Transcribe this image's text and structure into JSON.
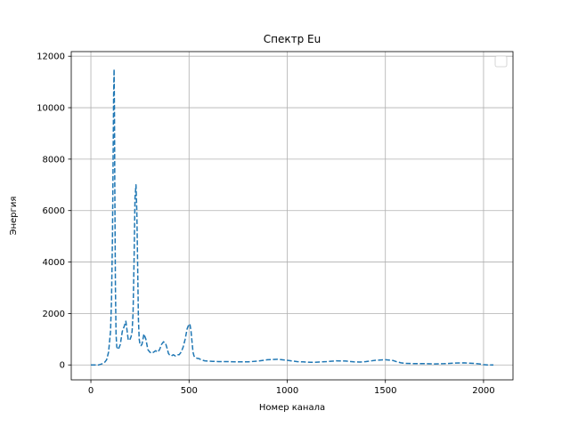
{
  "chart_data": {
    "type": "line",
    "title": "Спектр Eu",
    "xlabel": "Номер канала",
    "ylabel": "Энергия",
    "xlim": [
      -100,
      2150
    ],
    "ylim": [
      -580,
      12180
    ],
    "xticks": [
      0,
      500,
      1000,
      1500,
      2000
    ],
    "yticks": [
      0,
      2000,
      4000,
      6000,
      8000,
      10000,
      12000
    ],
    "grid": true,
    "legend": {
      "placement": "top-right",
      "entries": []
    },
    "series": [
      {
        "color": "#1f77b4",
        "line_style": "dashed",
        "x": [
          0,
          40,
          60,
          70,
          80,
          90,
          100,
          105,
          110,
          113,
          116,
          118,
          120,
          122,
          125,
          128,
          132,
          140,
          150,
          160,
          170,
          178,
          185,
          190,
          195,
          200,
          205,
          210,
          215,
          220,
          225,
          230,
          234,
          238,
          242,
          246,
          250,
          255,
          260,
          265,
          270,
          280,
          290,
          300,
          310,
          320,
          330,
          340,
          350,
          360,
          370,
          380,
          390,
          395,
          400,
          405,
          410,
          420,
          430,
          440,
          450,
          460,
          470,
          480,
          490,
          500,
          505,
          510,
          515,
          520,
          525,
          530,
          535,
          540,
          545,
          550,
          555,
          560,
          570,
          580,
          600,
          620,
          650,
          700,
          750,
          800,
          850,
          900,
          950,
          1000,
          1050,
          1080,
          1100,
          1120,
          1140,
          1160,
          1200,
          1250,
          1300,
          1340,
          1370,
          1400,
          1450,
          1500,
          1540,
          1560,
          1580,
          1600,
          1650,
          1700,
          1750,
          1800,
          1850,
          1900,
          1950,
          1980,
          2000,
          2020,
          2050
        ],
        "y": [
          0,
          0,
          50,
          100,
          200,
          500,
          1300,
          2500,
          5000,
          8000,
          10500,
          11500,
          10000,
          7000,
          3000,
          1200,
          700,
          600,
          800,
          1300,
          1500,
          1700,
          1300,
          1000,
          1050,
          1000,
          1100,
          1300,
          2000,
          4000,
          6500,
          7000,
          6000,
          4000,
          1800,
          1000,
          800,
          750,
          800,
          1000,
          1200,
          1000,
          600,
          500,
          450,
          500,
          550,
          500,
          600,
          800,
          900,
          850,
          600,
          450,
          400,
          380,
          350,
          400,
          350,
          400,
          400,
          500,
          700,
          1000,
          1400,
          1600,
          1550,
          1300,
          900,
          500,
          350,
          300,
          280,
          260,
          250,
          250,
          230,
          200,
          180,
          160,
          150,
          140,
          130,
          130,
          120,
          120,
          150,
          200,
          220,
          180,
          130,
          120,
          110,
          100,
          100,
          110,
          130,
          160,
          150,
          120,
          110,
          130,
          180,
          200,
          170,
          120,
          80,
          60,
          50,
          50,
          40,
          50,
          70,
          80,
          60,
          40,
          10,
          0,
          0
        ]
      }
    ]
  }
}
